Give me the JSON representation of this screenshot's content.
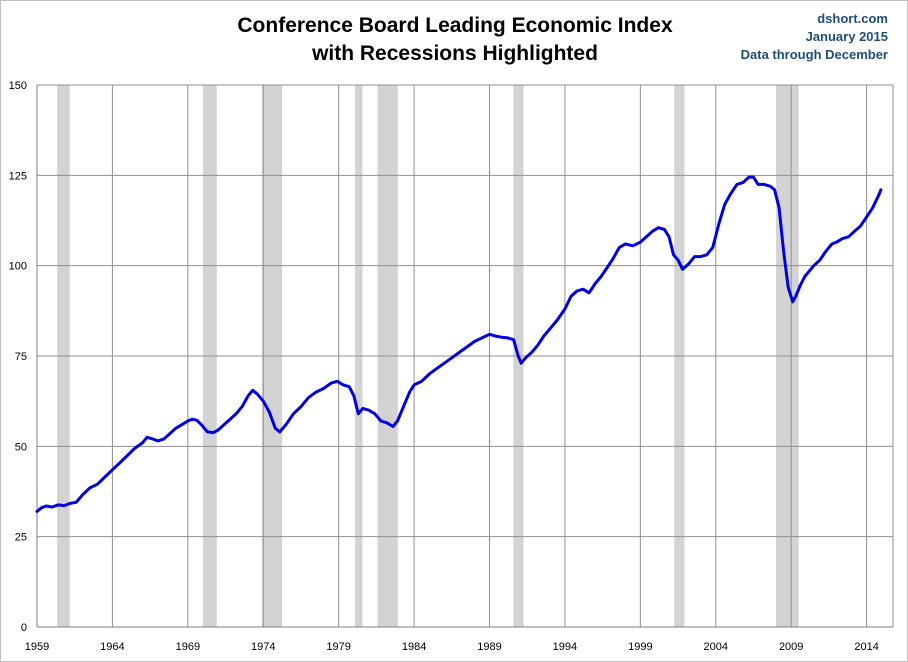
{
  "title_line1": "Conference Board Leading Economic Index",
  "title_line2": "with Recessions Highlighted",
  "source": {
    "site": "dshort.com",
    "date": "January 2015",
    "note": "Data through December"
  },
  "chart_data": {
    "type": "line",
    "title": "Conference Board Leading Economic Index with Recessions Highlighted",
    "xlim": [
      1959,
      2015.75
    ],
    "ylim": [
      0,
      150
    ],
    "grid": true,
    "x_ticks": [
      1959,
      1964,
      1969,
      1974,
      1979,
      1984,
      1989,
      1994,
      1999,
      2004,
      2009,
      2014
    ],
    "y_ticks": [
      0,
      25,
      50,
      75,
      100,
      125,
      150
    ],
    "colors": {
      "line": "#0000e0",
      "recession": "#d3d3d3",
      "grid": "#909090"
    },
    "recessions": [
      [
        1960.33,
        1961.17
      ],
      [
        1970.0,
        1970.92
      ],
      [
        1973.92,
        1975.25
      ],
      [
        1980.08,
        1980.58
      ],
      [
        1981.58,
        1982.92
      ],
      [
        1990.58,
        1991.25
      ],
      [
        2001.25,
        2001.92
      ],
      [
        2008.0,
        2009.5
      ]
    ],
    "series": [
      {
        "x": [
          1959.0,
          1959.3,
          1959.6,
          1960.0,
          1960.4,
          1960.8,
          1961.2,
          1961.6,
          1962.0,
          1962.5,
          1963.0,
          1963.5,
          1964.0,
          1964.5,
          1965.0,
          1965.5,
          1966.0,
          1966.3,
          1966.7,
          1967.0,
          1967.4,
          1967.8,
          1968.2,
          1968.6,
          1969.0,
          1969.3,
          1969.6,
          1969.9,
          1970.3,
          1970.7,
          1971.0,
          1971.4,
          1971.8,
          1972.2,
          1972.6,
          1973.0,
          1973.3,
          1973.6,
          1974.0,
          1974.4,
          1974.8,
          1975.1,
          1975.5,
          1976.0,
          1976.5,
          1977.0,
          1977.5,
          1978.0,
          1978.5,
          1978.9,
          1979.3,
          1979.7,
          1980.0,
          1980.3,
          1980.6,
          1981.0,
          1981.4,
          1981.8,
          1982.2,
          1982.6,
          1982.9,
          1983.3,
          1983.7,
          1984.0,
          1984.5,
          1985.0,
          1985.5,
          1986.0,
          1986.5,
          1987.0,
          1987.5,
          1988.0,
          1988.5,
          1989.0,
          1989.4,
          1989.8,
          1990.2,
          1990.6,
          1990.9,
          1991.1,
          1991.4,
          1991.8,
          1992.2,
          1992.6,
          1993.0,
          1993.5,
          1994.0,
          1994.4,
          1994.8,
          1995.2,
          1995.6,
          1996.0,
          1996.4,
          1996.8,
          1997.2,
          1997.6,
          1998.0,
          1998.5,
          1999.0,
          1999.4,
          1999.8,
          2000.2,
          2000.6,
          2000.9,
          2001.2,
          2001.5,
          2001.8,
          2002.2,
          2002.6,
          2003.0,
          2003.4,
          2003.8,
          2004.2,
          2004.6,
          2005.0,
          2005.4,
          2005.8,
          2006.2,
          2006.5,
          2006.8,
          2007.2,
          2007.6,
          2007.9,
          2008.2,
          2008.5,
          2008.8,
          2009.1,
          2009.3,
          2009.6,
          2009.9,
          2010.2,
          2010.5,
          2010.9,
          2011.3,
          2011.7,
          2012.0,
          2012.4,
          2012.8,
          2013.2,
          2013.6,
          2014.0,
          2014.4,
          2014.8,
          2014.95
        ],
        "y": [
          32.0,
          33.0,
          33.5,
          33.2,
          33.8,
          33.6,
          34.2,
          34.5,
          36.5,
          38.5,
          39.5,
          41.5,
          43.5,
          45.5,
          47.5,
          49.5,
          51.0,
          52.5,
          52.0,
          51.5,
          52.0,
          53.5,
          55.0,
          56.0,
          57.0,
          57.5,
          57.2,
          56.0,
          54.0,
          53.8,
          54.5,
          56.0,
          57.5,
          59.0,
          61.0,
          64.0,
          65.5,
          64.5,
          62.5,
          59.5,
          55.0,
          54.0,
          56.0,
          59.0,
          61.0,
          63.5,
          65.0,
          66.0,
          67.5,
          68.0,
          67.0,
          66.5,
          64.0,
          59.0,
          60.5,
          60.0,
          59.0,
          57.0,
          56.5,
          55.5,
          57.0,
          61.0,
          65.0,
          67.0,
          68.0,
          70.0,
          71.5,
          73.0,
          74.5,
          76.0,
          77.5,
          79.0,
          80.0,
          81.0,
          80.5,
          80.2,
          80.0,
          79.5,
          75.0,
          73.0,
          74.5,
          76.0,
          78.0,
          80.5,
          82.5,
          85.0,
          88.0,
          91.5,
          93.0,
          93.5,
          92.5,
          95.0,
          97.0,
          99.5,
          102.0,
          105.0,
          106.0,
          105.5,
          106.5,
          108.0,
          109.5,
          110.5,
          110.0,
          108.0,
          103.0,
          101.5,
          99.0,
          100.5,
          102.5,
          102.5,
          103.0,
          105.0,
          111.5,
          117.0,
          120.0,
          122.5,
          123.0,
          124.5,
          124.5,
          122.5,
          122.5,
          122.0,
          121.0,
          116.0,
          104.0,
          94.0,
          90.0,
          91.5,
          94.5,
          97.0,
          98.5,
          100.0,
          101.5,
          104.0,
          106.0,
          106.5,
          107.5,
          108.0,
          109.5,
          111.0,
          113.5,
          116.0,
          119.5,
          121.0
        ]
      }
    ]
  }
}
